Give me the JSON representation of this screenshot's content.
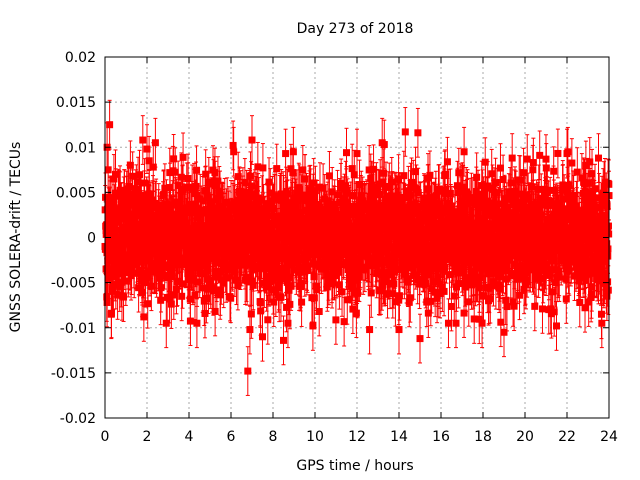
{
  "chart_data": {
    "type": "scatter",
    "title": "Day 273 of 2018",
    "xlabel": "GPS time / hours",
    "ylabel": "GNSS SOLERA-drift / TECUs",
    "xlim": [
      0,
      24
    ],
    "ylim": [
      -0.02,
      0.02
    ],
    "x_ticks": [
      "0",
      "2",
      "4",
      "6",
      "8",
      "10",
      "12",
      "14",
      "16",
      "18",
      "20",
      "22",
      "24"
    ],
    "y_ticks": [
      "0.02",
      "0.015",
      "0.01",
      "0.005",
      "0",
      "-0.005",
      "-0.01",
      "-0.015",
      "-0.02"
    ],
    "grid": true,
    "legend": "none",
    "series": [
      {
        "marker": "square",
        "error_bars": true,
        "typical_error": 0.0027,
        "color": "#ff0000",
        "points": [
          [
            0.05,
            -0.0035
          ],
          [
            0.1,
            0.01
          ],
          [
            0.15,
            0.0075
          ],
          [
            0.22,
            0.0125
          ],
          [
            0.3,
            -0.0085
          ],
          [
            0.1,
            -0.0072
          ],
          [
            0.5,
            0.007
          ],
          [
            0.6,
            -0.004
          ],
          [
            1.8,
            0.0108
          ],
          [
            1.85,
            -0.0088
          ],
          [
            2.0,
            0.0098
          ],
          [
            2.1,
            0.0085
          ],
          [
            2.3,
            0.0078
          ],
          [
            2.4,
            0.0105
          ],
          [
            6.1,
            0.0102
          ],
          [
            6.8,
            -0.0148
          ],
          [
            6.9,
            -0.0102
          ],
          [
            7.0,
            0.0108
          ],
          [
            7.5,
            -0.011
          ],
          [
            8.5,
            -0.0114
          ],
          [
            8.6,
            0.0093
          ],
          [
            9.9,
            -0.0098
          ],
          [
            10.2,
            -0.0082
          ],
          [
            11.5,
            0.0094
          ],
          [
            12.0,
            0.0093
          ],
          [
            12.6,
            -0.0102
          ],
          [
            13.2,
            0.0105
          ],
          [
            13.3,
            0.0103
          ],
          [
            14.0,
            -0.0102
          ],
          [
            14.3,
            0.0117
          ],
          [
            14.9,
            0.0116
          ],
          [
            15.0,
            -0.0112
          ],
          [
            17.1,
            0.0095
          ],
          [
            19.0,
            -0.0105
          ],
          [
            20.7,
            0.0091
          ],
          [
            21.5,
            -0.0098
          ],
          [
            22.0,
            0.0093
          ],
          [
            23.5,
            0.0088
          ],
          [
            23.9,
            -0.0065
          ]
        ]
      }
    ]
  }
}
